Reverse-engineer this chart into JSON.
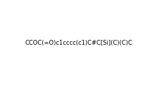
{
  "smiles": "CCOC(=O)c1cccc(c1)C#C[Si](C)(C)C",
  "title": "",
  "bg_color": "#ffffff",
  "figure_width": 2.23,
  "figure_height": 1.23,
  "dpi": 100
}
